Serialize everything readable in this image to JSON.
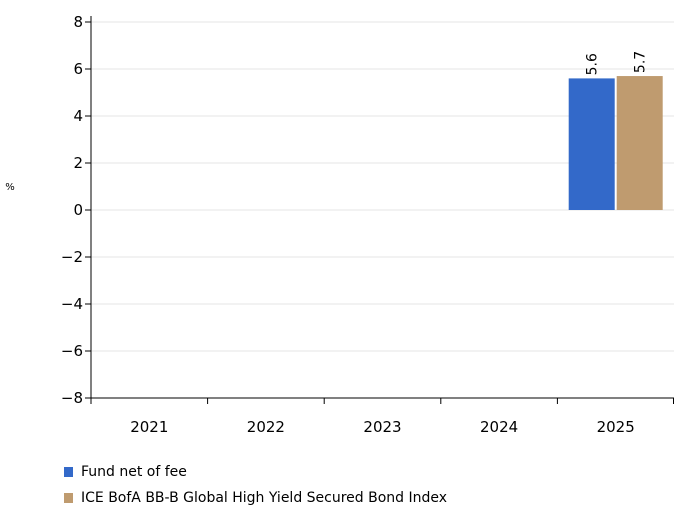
{
  "chart_data": {
    "type": "bar",
    "unit_label": "%",
    "categories": [
      "2021",
      "2022",
      "2023",
      "2024",
      "2025"
    ],
    "series": [
      {
        "name": "Fund net of fee",
        "color": "#3369c9",
        "values": [
          null,
          null,
          null,
          null,
          5.6
        ],
        "labels": [
          "",
          "",
          "",
          "",
          "5.6"
        ]
      },
      {
        "name": "ICE BofA BB-B Global High Yield Secured Bond Index",
        "color": "#bf9b6f",
        "values": [
          null,
          null,
          null,
          null,
          5.7
        ],
        "labels": [
          "",
          "",
          "",
          "",
          "5.7"
        ]
      }
    ],
    "ylim": [
      -8,
      8
    ],
    "yticks": [
      8,
      6,
      4,
      2,
      0,
      -2,
      -4,
      -6,
      -8
    ],
    "ytick_labels": [
      "8",
      "6",
      "4",
      "2",
      "0",
      "−2",
      "−4",
      "−6",
      "−8"
    ],
    "grid": true,
    "legend_position": "bottom-left"
  }
}
